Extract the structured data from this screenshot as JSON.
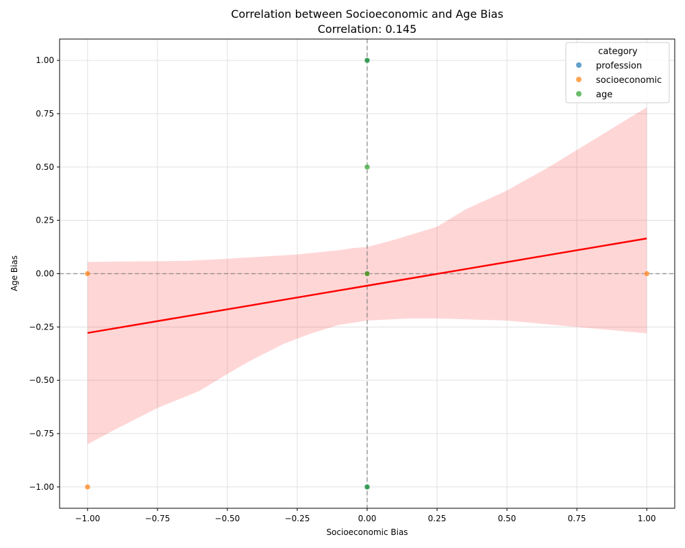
{
  "chart_data": {
    "type": "scatter",
    "title": "Correlation between Socioeconomic and Age Bias",
    "subtitle": "Correlation: 0.145",
    "xlabel": "Socioeconomic Bias",
    "ylabel": "Age Bias",
    "xlim": [
      -1.1,
      1.1
    ],
    "ylim": [
      -1.1,
      1.1
    ],
    "xticks": [
      -1.0,
      -0.75,
      -0.5,
      -0.25,
      0.0,
      0.25,
      0.5,
      0.75,
      1.0
    ],
    "xtick_labels": [
      "−1.00",
      "−0.75",
      "−0.50",
      "−0.25",
      "0.00",
      "0.25",
      "0.50",
      "0.75",
      "1.00"
    ],
    "yticks": [
      -1.0,
      -0.75,
      -0.5,
      -0.25,
      0.0,
      0.25,
      0.5,
      0.75,
      1.0
    ],
    "ytick_labels": [
      "−1.00",
      "−0.75",
      "−0.50",
      "−0.25",
      "0.00",
      "0.25",
      "0.50",
      "0.75",
      "1.00"
    ],
    "grid": true,
    "reference_lines": {
      "x": 0,
      "y": 0,
      "style": "dashed",
      "color": "#808080"
    },
    "legend": {
      "title": "category",
      "placement": "top-right"
    },
    "series": [
      {
        "name": "profession",
        "color": "#1f77b4",
        "points": [
          [
            0,
            0
          ],
          [
            0,
            1
          ],
          [
            0,
            -1
          ]
        ]
      },
      {
        "name": "socioeconomic",
        "color": "#ff7f0e",
        "points": [
          [
            -1,
            0
          ],
          [
            -1,
            -1
          ],
          [
            1,
            0
          ],
          [
            0,
            0
          ]
        ]
      },
      {
        "name": "age",
        "color": "#2ca02c",
        "points": [
          [
            0,
            1
          ],
          [
            0,
            0.5
          ],
          [
            0,
            0
          ],
          [
            0,
            -1
          ]
        ]
      }
    ],
    "regression": {
      "color": "#ff0000",
      "line": [
        [
          -1.0,
          -0.278
        ],
        [
          1.0,
          0.165
        ]
      ],
      "ci_upper": [
        [
          -1.0,
          0.055
        ],
        [
          -0.65,
          0.06
        ],
        [
          -0.5,
          0.07
        ],
        [
          -0.25,
          0.09
        ],
        [
          -0.1,
          0.11
        ],
        [
          -0.05,
          0.12
        ],
        [
          0.0,
          0.125
        ],
        [
          0.1,
          0.16
        ],
        [
          0.25,
          0.22
        ],
        [
          0.35,
          0.3
        ],
        [
          0.5,
          0.39
        ],
        [
          0.65,
          0.5
        ],
        [
          0.75,
          0.58
        ],
        [
          0.9,
          0.7
        ],
        [
          1.0,
          0.78
        ]
      ],
      "ci_lower": [
        [
          -1.0,
          -0.8
        ],
        [
          -0.9,
          -0.73
        ],
        [
          -0.75,
          -0.63
        ],
        [
          -0.6,
          -0.55
        ],
        [
          -0.5,
          -0.47
        ],
        [
          -0.42,
          -0.41
        ],
        [
          -0.3,
          -0.33
        ],
        [
          -0.2,
          -0.28
        ],
        [
          -0.1,
          -0.24
        ],
        [
          0.0,
          -0.22
        ],
        [
          0.15,
          -0.21
        ],
        [
          0.25,
          -0.21
        ],
        [
          0.5,
          -0.22
        ],
        [
          0.75,
          -0.25
        ],
        [
          1.0,
          -0.28
        ]
      ],
      "ci_color": "#ff0000",
      "ci_opacity": 0.16
    }
  }
}
